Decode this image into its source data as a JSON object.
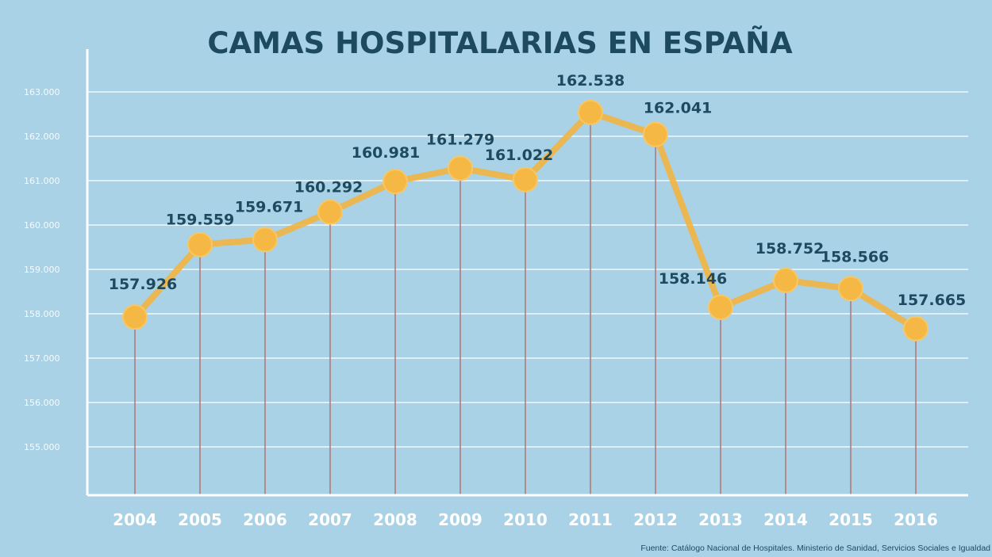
{
  "chart_data": {
    "type": "line",
    "title": "CAMAS HOSPITALARIAS EN ESPAÑA",
    "xlabel": "",
    "ylabel": "",
    "x": [
      "2004",
      "2005",
      "2006",
      "2007",
      "2008",
      "2009",
      "2010",
      "2011",
      "2012",
      "2013",
      "2014",
      "2015",
      "2016"
    ],
    "series": [
      {
        "values": [
          157926,
          159559,
          159671,
          160292,
          160981,
          161279,
          161022,
          162538,
          162041,
          158146,
          158752,
          158566,
          157665
        ],
        "labels": [
          "157.926",
          "159.559",
          "159.671",
          "160.292",
          "160.981",
          "161.279",
          "161.022",
          "162.538",
          "162.041",
          "158.146",
          "158.752",
          "158.566",
          "157.665"
        ]
      }
    ],
    "yticks": [
      155000,
      156000,
      157000,
      158000,
      159000,
      160000,
      161000,
      162000,
      163000
    ],
    "ytick_labels": [
      "155.000",
      "156.000",
      "157.000",
      "158.000",
      "159.000",
      "160.000",
      "161.000",
      "162.000",
      "163.000"
    ],
    "ylim": [
      154000,
      164000
    ],
    "grid": true,
    "source": "Fuente: Catálogo Nacional de Hospitales. Ministerio de Sanidad, Servicios Sociales e Igualdad",
    "colors": {
      "background": "#a9d2e6",
      "line": "#f2b441",
      "marker": "#f5b844",
      "stem": "#b07a7a",
      "grid": "#ffffff",
      "title": "#1e4a60",
      "labels": "#1e4a60"
    }
  }
}
